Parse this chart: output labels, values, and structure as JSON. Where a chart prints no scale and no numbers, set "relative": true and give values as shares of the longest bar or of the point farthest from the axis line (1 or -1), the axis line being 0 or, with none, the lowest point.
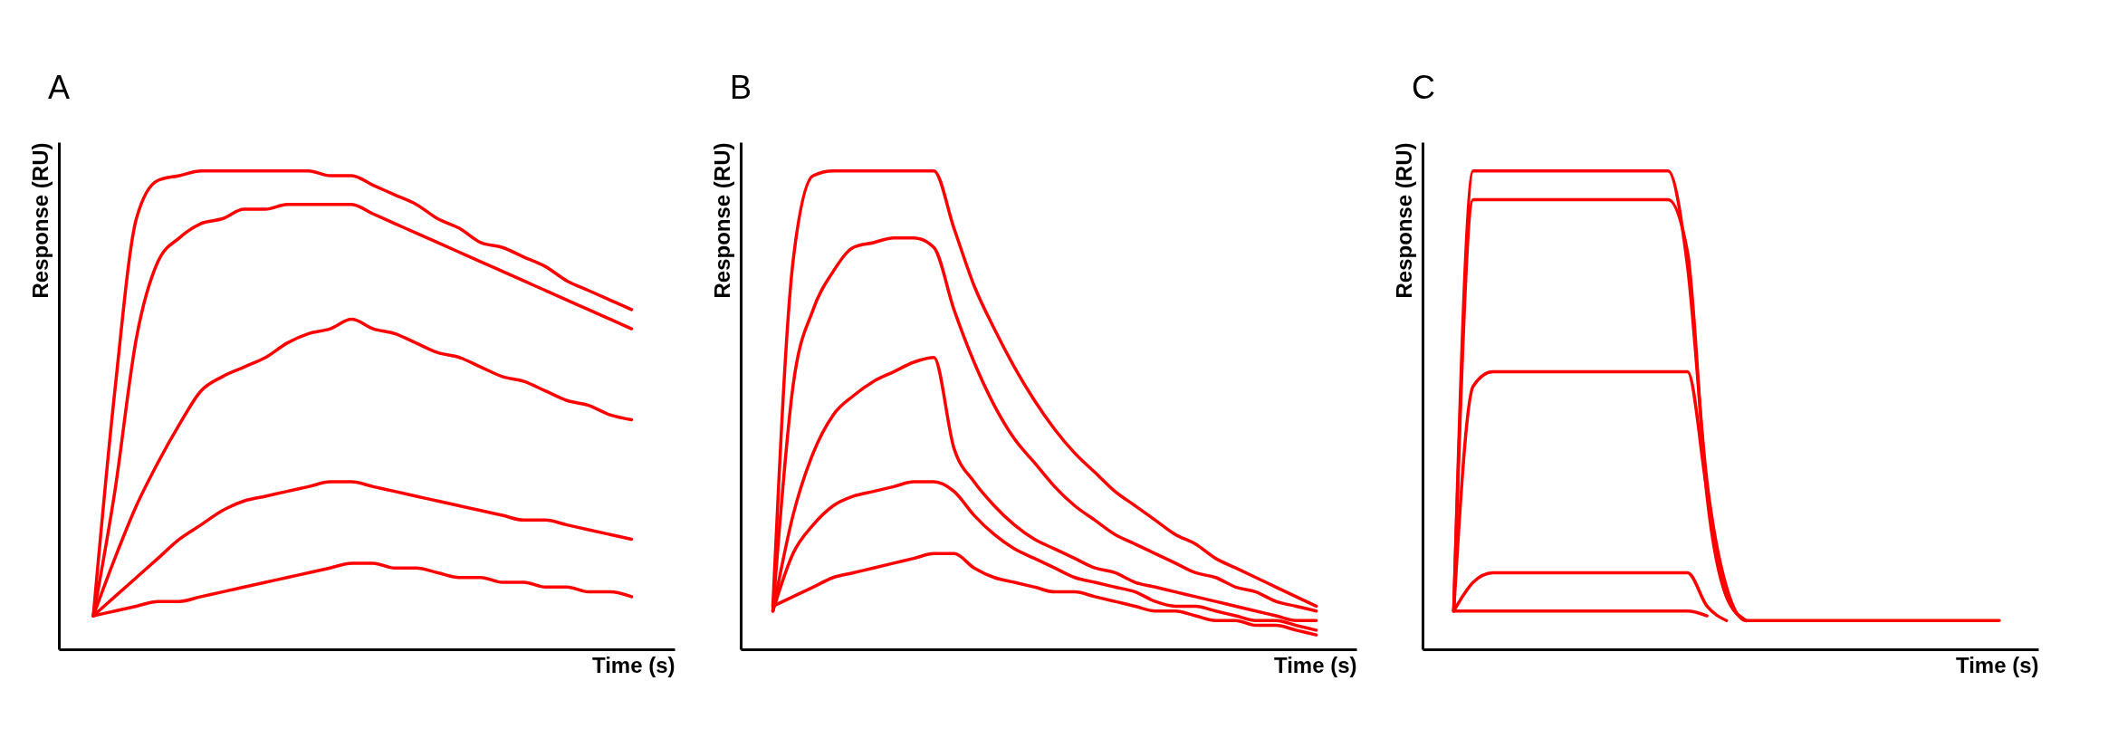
{
  "chart_data": [
    {
      "type": "line",
      "title": "A",
      "xlabel": "Time  (s)",
      "ylabel": "Response  (RU)",
      "relative": true,
      "tick_labels": false,
      "categories": [
        null,
        null,
        null,
        null,
        null,
        null,
        null,
        null,
        null,
        null,
        null,
        null,
        null,
        null,
        null,
        null,
        null,
        null,
        null,
        null,
        null,
        null,
        null,
        null,
        null,
        null
      ],
      "series": [
        {
          "color": "#ff0000",
          "values": [
            0.07,
            0.54,
            0.9,
            0.98,
            0.99,
            1,
            1,
            1,
            1,
            1,
            1,
            0.99,
            0.99,
            0.97,
            0.95,
            0.93,
            0.9,
            0.88,
            0.85,
            0.84,
            0.82,
            0.8,
            0.77,
            0.75,
            0.73,
            0.71
          ]
        },
        {
          "color": "#ff0000",
          "values": [
            0.07,
            0.33,
            0.65,
            0.81,
            0.86,
            0.89,
            0.9,
            0.92,
            0.92,
            0.93,
            0.93,
            0.93,
            0.93,
            0.91,
            0.89,
            0.87,
            0.85,
            0.83,
            0.81,
            0.79,
            0.77,
            0.75,
            0.73,
            0.71,
            0.69,
            0.67
          ]
        },
        {
          "color": "#ff0000",
          "values": [
            0.07,
            0.19,
            0.3,
            0.39,
            0.47,
            0.54,
            0.57,
            0.59,
            0.61,
            0.64,
            0.66,
            0.67,
            0.69,
            0.67,
            0.66,
            0.64,
            0.62,
            0.61,
            0.59,
            0.57,
            0.56,
            0.54,
            0.52,
            0.51,
            0.49,
            0.48
          ]
        },
        {
          "color": "#ff0000",
          "values": [
            0.07,
            0.11,
            0.15,
            0.19,
            0.23,
            0.26,
            0.29,
            0.31,
            0.32,
            0.33,
            0.34,
            0.35,
            0.35,
            0.34,
            0.33,
            0.32,
            0.31,
            0.3,
            0.29,
            0.28,
            0.27,
            0.27,
            0.26,
            0.25,
            0.24,
            0.23
          ]
        },
        {
          "color": "#ff0000",
          "values": [
            0.07,
            0.08,
            0.09,
            0.1,
            0.1,
            0.11,
            0.12,
            0.13,
            0.14,
            0.15,
            0.16,
            0.17,
            0.18,
            0.18,
            0.17,
            0.17,
            0.16,
            0.15,
            0.15,
            0.14,
            0.14,
            0.13,
            0.13,
            0.12,
            0.12,
            0.11
          ]
        }
      ]
    },
    {
      "type": "line",
      "title": "B",
      "xlabel": "Time  (s)",
      "ylabel": "Response  (RU)",
      "relative": true,
      "tick_labels": false,
      "categories": [
        null,
        null,
        null,
        null,
        null,
        null,
        null,
        null,
        null,
        null,
        null,
        null,
        null,
        null,
        null,
        null,
        null,
        null,
        null,
        null,
        null,
        null,
        null,
        null,
        null,
        null,
        null,
        null
      ],
      "series": [
        {
          "color": "#ff0000",
          "values": [
            0.09,
            0.81,
            0.99,
            1,
            1,
            1,
            1,
            1,
            1,
            0.88,
            0.76,
            0.67,
            0.59,
            0.52,
            0.46,
            0.41,
            0.37,
            0.33,
            0.3,
            0.27,
            0.24,
            0.22,
            0.19,
            0.17,
            0.15,
            0.13,
            0.11,
            0.09
          ]
        },
        {
          "color": "#ff0000",
          "values": [
            0.08,
            0.55,
            0.71,
            0.79,
            0.84,
            0.85,
            0.86,
            0.86,
            0.84,
            0.71,
            0.6,
            0.51,
            0.44,
            0.39,
            0.34,
            0.3,
            0.27,
            0.24,
            0.22,
            0.2,
            0.18,
            0.16,
            0.15,
            0.13,
            0.12,
            0.1,
            0.09,
            0.08
          ]
        },
        {
          "color": "#ff0000",
          "values": [
            0.08,
            0.28,
            0.41,
            0.49,
            0.53,
            0.56,
            0.58,
            0.6,
            0.61,
            0.42,
            0.35,
            0.3,
            0.26,
            0.23,
            0.21,
            0.19,
            0.17,
            0.16,
            0.14,
            0.13,
            0.12,
            0.11,
            0.1,
            0.09,
            0.08,
            0.07,
            0.06,
            0.06
          ]
        },
        {
          "color": "#ff0000",
          "values": [
            0.08,
            0.2,
            0.26,
            0.3,
            0.32,
            0.33,
            0.34,
            0.35,
            0.35,
            0.33,
            0.28,
            0.24,
            0.21,
            0.19,
            0.17,
            0.15,
            0.14,
            0.13,
            0.12,
            0.1,
            0.09,
            0.09,
            0.08,
            0.07,
            0.06,
            0.06,
            0.05,
            0.04
          ]
        },
        {
          "color": "#ff0000",
          "values": [
            0.09,
            0.11,
            0.13,
            0.15,
            0.16,
            0.17,
            0.18,
            0.19,
            0.2,
            0.2,
            0.17,
            0.15,
            0.14,
            0.13,
            0.12,
            0.12,
            0.11,
            0.1,
            0.09,
            0.08,
            0.08,
            0.07,
            0.06,
            0.06,
            0.05,
            0.05,
            0.04,
            0.03
          ]
        }
      ]
    },
    {
      "type": "line",
      "title": "C",
      "xlabel": "Time  (s)",
      "ylabel": "Response  (RU)",
      "relative": true,
      "tick_labels": false,
      "categories": [
        null,
        null,
        null,
        null,
        null,
        null,
        null,
        null,
        null,
        null,
        null,
        null,
        null,
        null,
        null,
        null,
        null,
        null,
        null,
        null,
        null,
        null,
        null,
        null,
        null,
        null,
        null,
        null,
        null
      ],
      "series": [
        {
          "color": "#ff0000",
          "values": [
            0.08,
            1,
            1,
            1,
            1,
            1,
            1,
            1,
            1,
            1,
            1,
            1,
            0.8,
            0.35,
            0.13,
            0.06,
            0.06,
            0.06,
            0.06,
            0.06,
            0.06,
            0.06,
            0.06,
            0.06,
            0.06,
            0.06,
            0.06,
            0.06,
            0.06
          ]
        },
        {
          "color": "#ff0000",
          "values": [
            0.08,
            0.94,
            0.94,
            0.94,
            0.94,
            0.94,
            0.94,
            0.94,
            0.94,
            0.94,
            0.94,
            0.94,
            0.83,
            0.32,
            0.11,
            0.06,
            null,
            null,
            null,
            null,
            null,
            null,
            null,
            null,
            null,
            null,
            null,
            null,
            null
          ]
        },
        {
          "color": "#ff0000",
          "values": [
            0.08,
            0.55,
            0.58,
            0.58,
            0.58,
            0.58,
            0.58,
            0.58,
            0.58,
            0.58,
            0.58,
            0.58,
            0.58,
            0.33,
            0.11,
            0.06,
            null,
            null,
            null,
            null,
            null,
            null,
            null,
            null,
            null,
            null,
            null,
            null,
            null
          ]
        },
        {
          "color": "#ff0000",
          "values": [
            0.08,
            0.14,
            0.16,
            0.16,
            0.16,
            0.16,
            0.16,
            0.16,
            0.16,
            0.16,
            0.16,
            0.16,
            0.16,
            0.09,
            0.06,
            null,
            null,
            null,
            null,
            null,
            null,
            null,
            null,
            null,
            null,
            null,
            null,
            null,
            null
          ]
        },
        {
          "color": "#ff0000",
          "values": [
            0.08,
            0.08,
            0.08,
            0.08,
            0.08,
            0.08,
            0.08,
            0.08,
            0.08,
            0.08,
            0.08,
            0.08,
            0.08,
            0.07,
            null,
            null,
            null,
            null,
            null,
            null,
            null,
            null,
            null,
            null,
            null,
            null,
            null,
            null,
            null
          ]
        }
      ]
    }
  ]
}
